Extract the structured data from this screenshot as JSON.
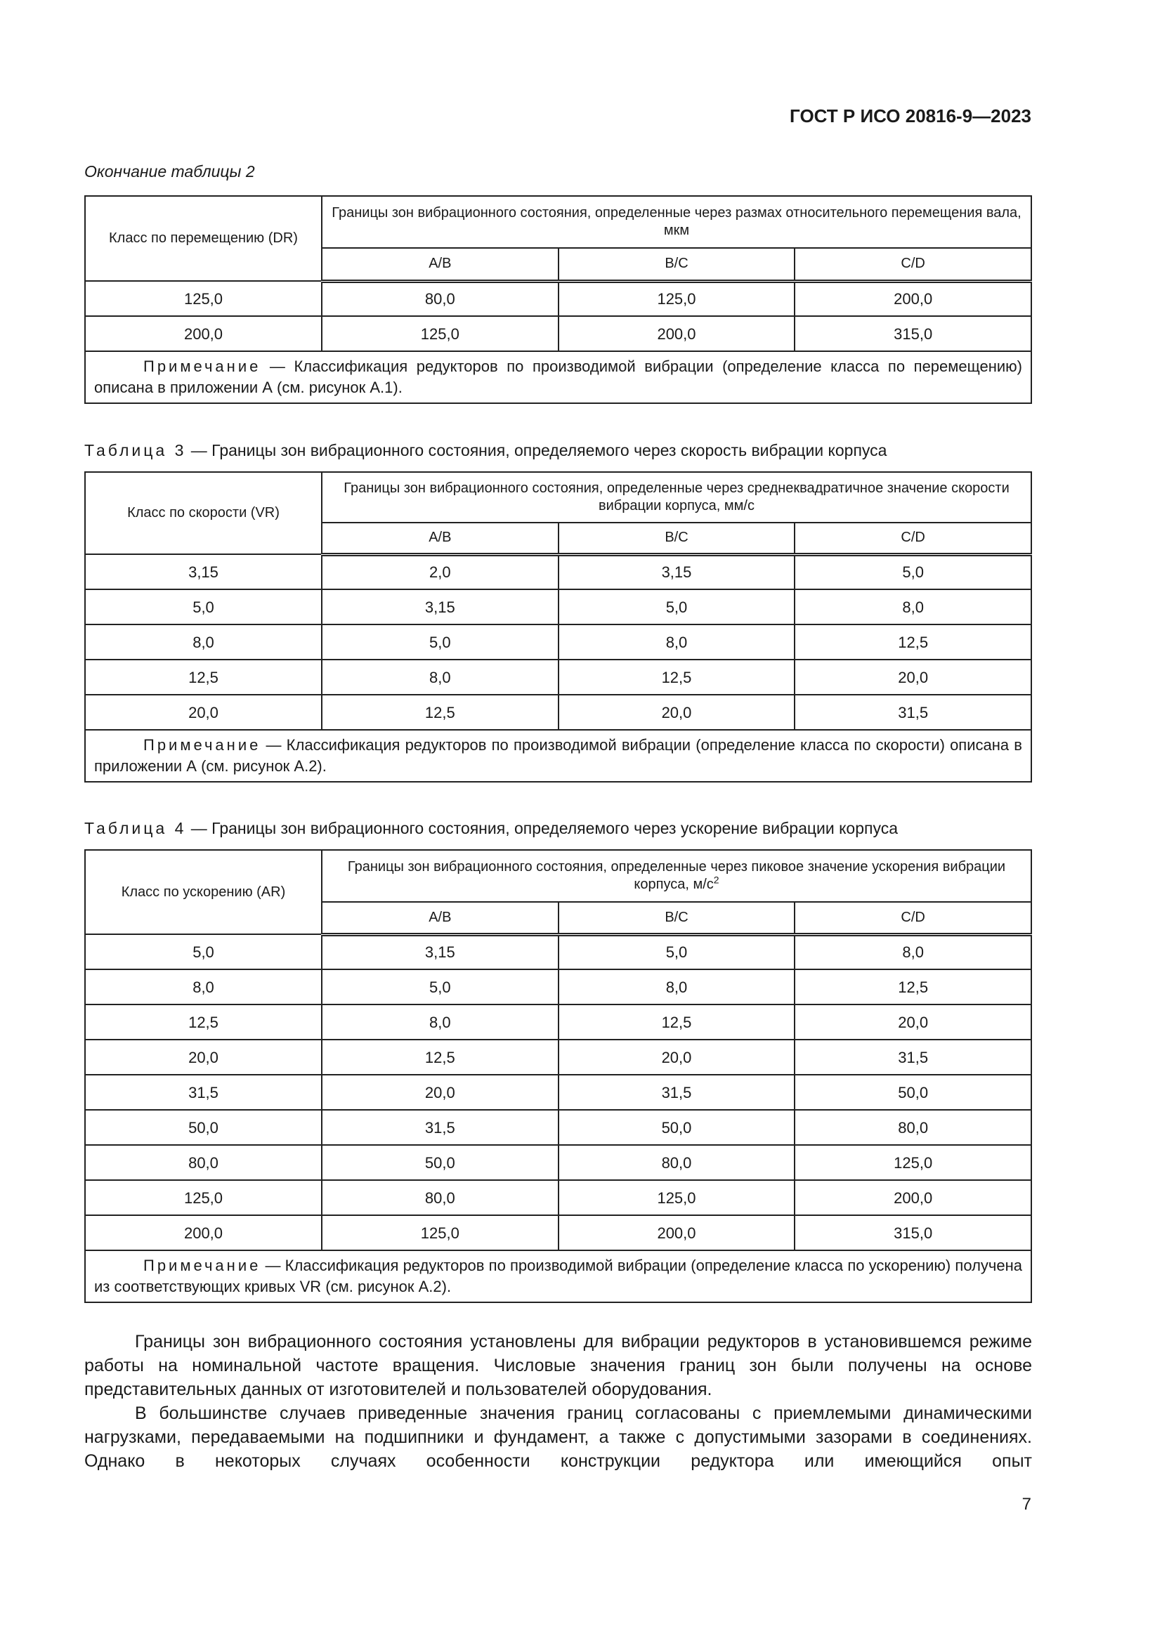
{
  "header": {
    "doc_code": "ГОСТ Р ИСО 20816-9—2023"
  },
  "table2_end": {
    "caption": "Окончание таблицы 2",
    "col_class": "Класс по перемещению (DR)",
    "col_group": "Границы зон вибрационного состояния, определенные через размах относительного перемещения вала, мкм",
    "subcols": [
      "A/B",
      "B/C",
      "C/D"
    ],
    "rows": [
      [
        "125,0",
        "80,0",
        "125,0",
        "200,0"
      ],
      [
        "200,0",
        "125,0",
        "200,0",
        "315,0"
      ]
    ],
    "note_label": "Примечание",
    "note_text": "— Классификация редукторов по производимой вибрации (определение класса по перемещению) описана в приложении А (см. рисунок А.1)."
  },
  "table3": {
    "caption_label": "Таблица 3",
    "caption_text": "— Границы зон вибрационного состояния, определяемого через скорость вибрации корпуса",
    "col_class": "Класс по скорости (VR)",
    "col_group": "Границы зон вибрационного состояния, определенные через среднеквадратичное значение скорости вибрации корпуса, мм/с",
    "subcols": [
      "A/B",
      "B/C",
      "C/D"
    ],
    "rows": [
      [
        "3,15",
        "2,0",
        "3,15",
        "5,0"
      ],
      [
        "5,0",
        "3,15",
        "5,0",
        "8,0"
      ],
      [
        "8,0",
        "5,0",
        "8,0",
        "12,5"
      ],
      [
        "12,5",
        "8,0",
        "12,5",
        "20,0"
      ],
      [
        "20,0",
        "12,5",
        "20,0",
        "31,5"
      ]
    ],
    "note_label": "Примечание",
    "note_text": "— Классификация редукторов по производимой вибрации (определение класса по скорости) описана в приложении А (см. рисунок А.2)."
  },
  "table4": {
    "caption_label": "Таблица 4",
    "caption_text": "— Границы зон вибрационного состояния, определяемого через ускорение вибрации корпуса",
    "col_class": "Класс по ускорению (AR)",
    "col_group": "Границы зон вибрационного состояния, определенные через пиковое значение ускорения вибрации корпуса, м/с",
    "col_group_sup": "2",
    "subcols": [
      "A/B",
      "B/C",
      "C/D"
    ],
    "rows": [
      [
        "5,0",
        "3,15",
        "5,0",
        "8,0"
      ],
      [
        "8,0",
        "5,0",
        "8,0",
        "12,5"
      ],
      [
        "12,5",
        "8,0",
        "12,5",
        "20,0"
      ],
      [
        "20,0",
        "12,5",
        "20,0",
        "31,5"
      ],
      [
        "31,5",
        "20,0",
        "31,5",
        "50,0"
      ],
      [
        "50,0",
        "31,5",
        "50,0",
        "80,0"
      ],
      [
        "80,0",
        "50,0",
        "80,0",
        "125,0"
      ],
      [
        "125,0",
        "80,0",
        "125,0",
        "200,0"
      ],
      [
        "200,0",
        "125,0",
        "200,0",
        "315,0"
      ]
    ],
    "note_label": "Примечание",
    "note_text": "— Классификация редукторов по производимой вибрации (определение класса по ускорению) получена из соответствующих кривых VR (см. рисунок А.2)."
  },
  "body": {
    "paragraphs": [
      "Границы зон вибрационного состояния установлены для вибрации редукторов в установившемся режиме работы на номинальной частоте вращения. Числовые значения границ зон были получены на основе представительных данных от изготовителей и пользователей оборудования.",
      "В большинстве случаев приведенные значения границ согласованы с приемлемыми динамическими нагрузками, передаваемыми на подшипники и фундамент, а также с допустимыми зазорами в соединениях. Однако в некоторых случаях особенности конструкции редуктора или имеющийся опыт"
    ]
  },
  "page_number": "7"
}
